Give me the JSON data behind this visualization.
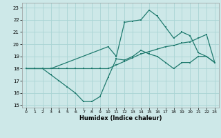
{
  "xlabel": "Humidex (Indice chaleur)",
  "xlim": [
    -0.5,
    23.5
  ],
  "ylim": [
    14.8,
    23.4
  ],
  "yticks": [
    15,
    16,
    17,
    18,
    19,
    20,
    21,
    22,
    23
  ],
  "xticks": [
    0,
    1,
    2,
    3,
    4,
    5,
    6,
    7,
    8,
    9,
    10,
    11,
    12,
    13,
    14,
    15,
    16,
    17,
    18,
    19,
    20,
    21,
    22,
    23
  ],
  "bg_color": "#cde8e8",
  "line_color": "#1f7a6e",
  "grid_color": "#aad4d4",
  "line1_x": [
    0,
    1,
    2,
    3,
    4,
    5,
    6,
    7,
    8,
    9,
    10,
    11,
    12,
    13,
    14,
    15,
    16,
    17,
    18,
    19,
    20,
    21,
    22,
    23
  ],
  "line1_y": [
    18.0,
    18.0,
    18.0,
    18.0,
    18.0,
    18.0,
    18.0,
    18.0,
    18.0,
    18.0,
    18.0,
    18.3,
    18.6,
    18.9,
    19.2,
    19.4,
    19.6,
    19.8,
    19.9,
    20.1,
    20.2,
    20.5,
    20.8,
    18.5
  ],
  "line2_x": [
    0,
    1,
    2,
    3,
    4,
    5,
    6,
    7,
    8,
    9,
    10,
    11,
    12,
    13,
    14,
    15,
    16,
    17,
    18,
    19,
    20,
    21,
    22,
    23
  ],
  "line2_y": [
    18.0,
    18.0,
    18.0,
    17.5,
    17.0,
    16.5,
    16.0,
    15.3,
    15.3,
    15.7,
    17.3,
    18.8,
    18.7,
    19.0,
    19.5,
    19.2,
    19.0,
    18.5,
    18.0,
    18.5,
    18.5,
    19.0,
    19.0,
    18.5
  ],
  "line3_x": [
    0,
    1,
    2,
    3,
    10,
    11,
    12,
    13,
    14,
    15,
    16,
    17,
    18,
    19,
    20,
    21,
    22,
    23
  ],
  "line3_y": [
    18.0,
    18.0,
    18.0,
    18.0,
    19.8,
    19.0,
    21.8,
    21.9,
    22.0,
    22.8,
    22.3,
    21.4,
    20.5,
    21.0,
    20.7,
    19.3,
    19.0,
    18.5
  ]
}
